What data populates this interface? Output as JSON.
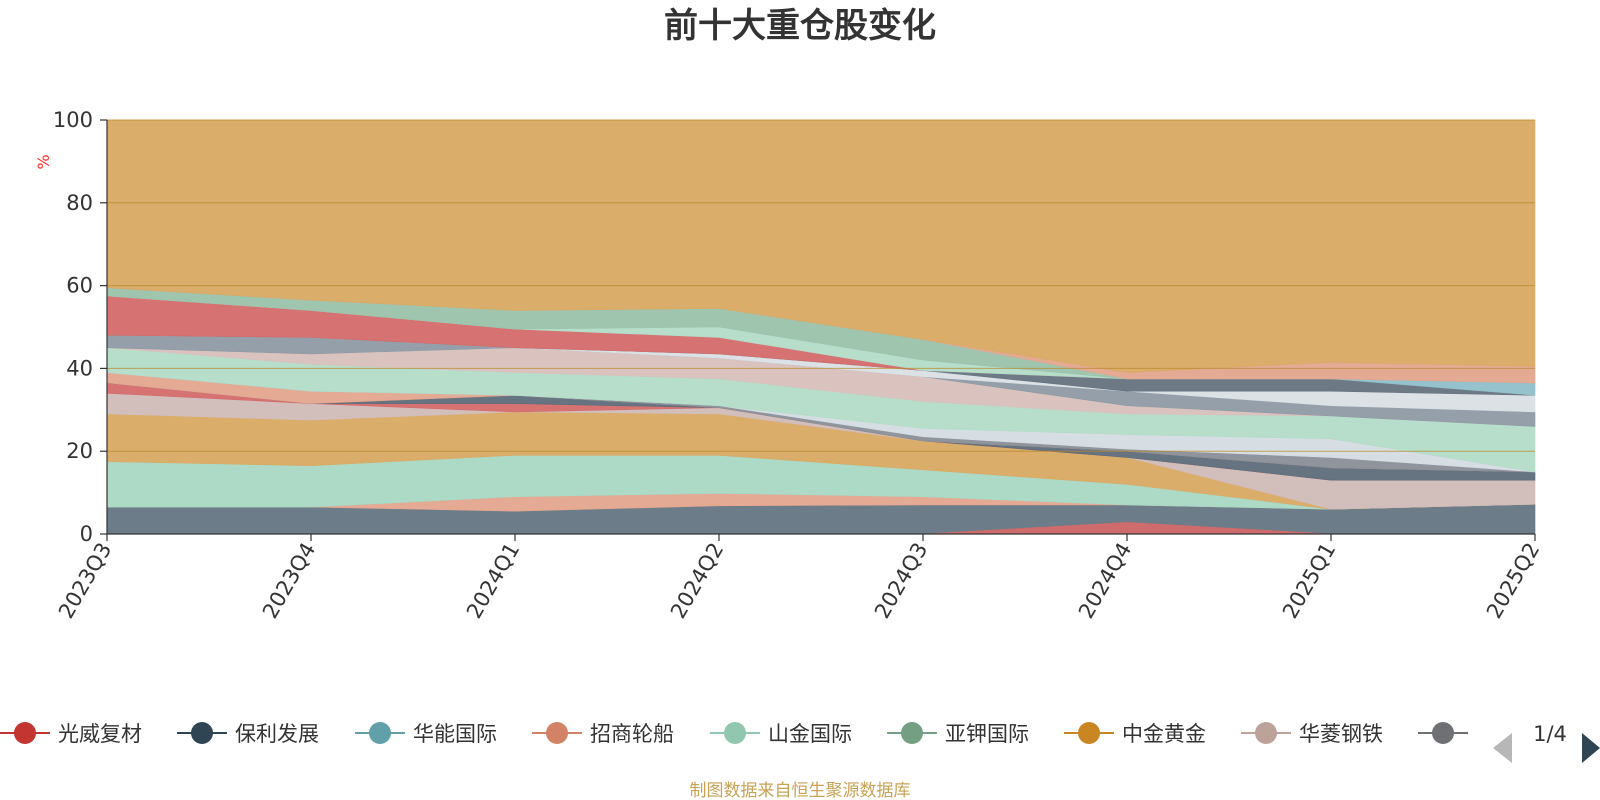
{
  "chart_data": {
    "type": "area",
    "title": "前十大重仓股变化",
    "ylabel": "%",
    "ylim": [
      0,
      100
    ],
    "yticks": [
      0,
      20,
      40,
      60,
      80,
      100
    ],
    "grid": true,
    "legend_position": "bottom",
    "legend_page": "1/4",
    "source_note": "制图数据来自恒生聚源数据库",
    "categories": [
      "2023Q3",
      "2023Q4",
      "2024Q1",
      "2024Q2",
      "2024Q3",
      "2024Q4",
      "2025Q1",
      "2025Q2"
    ],
    "bands": [
      {
        "color": "#647583",
        "opacity": 0.95,
        "lower": [
          0,
          0,
          0,
          0,
          0,
          0,
          0,
          0
        ],
        "upper": [
          6.5,
          6.5,
          5.5,
          6.8,
          7.0,
          7.0,
          6.0,
          7.2
        ]
      },
      {
        "color": "#d46a6a",
        "opacity": 0.95,
        "lower": [
          0,
          0,
          0,
          0,
          0,
          0,
          0,
          0
        ],
        "upper": [
          0,
          0,
          0,
          0,
          0,
          2.8,
          0,
          0
        ]
      },
      {
        "color": "#e4a58e",
        "opacity": 0.95,
        "lower": [
          6.5,
          6.5,
          5.5,
          6.8,
          7.0,
          7.0,
          6.0,
          7.2
        ],
        "upper": [
          6.5,
          6.5,
          9.0,
          9.8,
          9.0,
          7.0,
          6.0,
          7.2
        ]
      },
      {
        "color": "#a8d8c4",
        "opacity": 0.95,
        "lower": [
          6.5,
          6.5,
          9.0,
          9.8,
          9.0,
          7.0,
          6.0,
          7.2
        ],
        "upper": [
          17.5,
          16.5,
          19.0,
          19.0,
          15.5,
          12.0,
          6.0,
          7.2
        ]
      },
      {
        "color": "#d9a962",
        "opacity": 0.95,
        "lower": [
          17.5,
          16.5,
          19.0,
          19.0,
          15.5,
          12.0,
          6.0,
          7.2
        ],
        "upper": [
          29.0,
          27.5,
          29.5,
          29.0,
          22.5,
          18.5,
          6.0,
          7.2
        ]
      },
      {
        "color": "#d0bcb8",
        "opacity": 0.95,
        "lower": [
          29.0,
          27.5,
          29.5,
          29.0,
          22.5,
          18.5,
          6.0,
          7.2
        ],
        "upper": [
          34.0,
          31.5,
          29.5,
          30.5,
          22.5,
          18.5,
          13.0,
          13.0
        ]
      },
      {
        "color": "#d46a6a",
        "opacity": 0.95,
        "lower": [
          34.0,
          31.5,
          29.5,
          30.5,
          22.5,
          18.5,
          13.0,
          13.0
        ],
        "upper": [
          36.5,
          31.5,
          31.5,
          30.5,
          22.5,
          18.5,
          13.0,
          13.0
        ]
      },
      {
        "color": "#5e6c7a",
        "opacity": 0.95,
        "lower": [
          36.5,
          31.5,
          31.5,
          30.5,
          22.5,
          18.5,
          13.0,
          13.0
        ],
        "upper": [
          36.5,
          31.5,
          33.5,
          30.5,
          22.5,
          20.0,
          16.0,
          15.0
        ]
      },
      {
        "color": "#e4a58e",
        "opacity": 0.95,
        "lower": [
          36.5,
          31.5,
          33.5,
          30.5,
          22.5,
          20.0,
          16.0,
          15.0
        ],
        "upper": [
          39.0,
          34.5,
          33.5,
          30.5,
          22.5,
          20.0,
          16.0,
          15.0
        ]
      },
      {
        "color": "#8a8f98",
        "opacity": 0.95,
        "lower": [
          39.0,
          34.5,
          33.5,
          30.5,
          22.5,
          20.0,
          16.0,
          15.0
        ],
        "upper": [
          39.0,
          34.5,
          33.5,
          31.0,
          23.5,
          20.5,
          18.5,
          15.0
        ]
      },
      {
        "color": "#d5dce2",
        "opacity": 0.95,
        "lower": [
          39.0,
          34.5,
          33.5,
          31.0,
          23.5,
          20.5,
          18.5,
          15.0
        ],
        "upper": [
          39.0,
          34.5,
          33.5,
          31.0,
          25.5,
          24.0,
          23.0,
          15.0
        ]
      },
      {
        "color": "#b2dcc8",
        "opacity": 0.95,
        "lower": [
          39.0,
          34.5,
          33.5,
          31.0,
          25.5,
          24.0,
          23.0,
          15.0
        ],
        "upper": [
          45.0,
          41.0,
          39.0,
          37.5,
          32.0,
          29.0,
          28.5,
          26.0
        ]
      },
      {
        "color": "#d8c0bc",
        "opacity": 0.95,
        "lower": [
          45.0,
          41.0,
          39.0,
          37.5,
          32.0,
          29.0,
          28.5,
          26.0
        ],
        "upper": [
          45.0,
          43.5,
          45.0,
          42.5,
          38.0,
          31.0,
          28.5,
          26.0
        ]
      },
      {
        "color": "#8e9aa5",
        "opacity": 0.95,
        "lower": [
          45.0,
          43.5,
          45.0,
          42.5,
          38.0,
          31.0,
          28.5,
          26.0
        ],
        "upper": [
          48.0,
          47.5,
          45.0,
          42.5,
          38.0,
          34.5,
          31.0,
          29.5
        ]
      },
      {
        "color": "#d9dfe4",
        "opacity": 0.95,
        "lower": [
          48.0,
          47.5,
          45.0,
          42.5,
          38.0,
          34.5,
          31.0,
          29.5
        ],
        "upper": [
          48.0,
          47.5,
          45.0,
          43.5,
          39.5,
          34.5,
          34.5,
          33.5
        ]
      },
      {
        "color": "#66727f",
        "opacity": 0.95,
        "lower": [
          48.0,
          47.5,
          45.0,
          43.5,
          39.5,
          34.5,
          34.5,
          33.5
        ],
        "upper": [
          48.0,
          47.5,
          45.0,
          43.5,
          39.5,
          37.5,
          37.5,
          33.5
        ]
      },
      {
        "color": "#8fbfc9",
        "opacity": 0.95,
        "lower": [
          48.0,
          47.5,
          45.0,
          43.5,
          39.5,
          37.5,
          37.5,
          33.5
        ],
        "upper": [
          48.0,
          47.5,
          45.0,
          43.5,
          39.5,
          37.5,
          37.5,
          36.5
        ]
      },
      {
        "color": "#d46a6a",
        "opacity": 0.95,
        "lower": [
          48.0,
          47.5,
          45.0,
          43.5,
          39.5,
          37.5,
          37.5,
          36.5
        ],
        "upper": [
          57.5,
          54.0,
          49.5,
          47.5,
          39.5,
          37.5,
          37.5,
          36.5
        ]
      },
      {
        "color": "#b2dcc8",
        "opacity": 0.95,
        "lower": [
          57.5,
          54.0,
          49.5,
          47.5,
          39.5,
          37.5,
          37.5,
          36.5
        ],
        "upper": [
          57.5,
          54.0,
          49.5,
          50.0,
          42.0,
          37.5,
          37.5,
          36.5
        ]
      },
      {
        "color": "#9bc2ab",
        "opacity": 0.95,
        "lower": [
          57.5,
          54.0,
          49.5,
          50.0,
          42.0,
          37.5,
          37.5,
          36.5
        ],
        "upper": [
          59.5,
          56.5,
          54.0,
          54.5,
          47.0,
          37.5,
          37.5,
          36.5
        ]
      },
      {
        "color": "#e4a58e",
        "opacity": 0.95,
        "lower": [
          59.5,
          56.5,
          54.0,
          54.5,
          47.0,
          37.5,
          37.5,
          36.5
        ],
        "upper": [
          59.5,
          56.5,
          54.0,
          54.5,
          47.0,
          39.0,
          41.5,
          40.5
        ]
      },
      {
        "color": "#d9a962",
        "opacity": 0.95,
        "lower": [
          59.5,
          56.5,
          54.0,
          54.5,
          47.0,
          39.0,
          41.5,
          40.5
        ],
        "upper": [
          100,
          100,
          100,
          100,
          100,
          100,
          100,
          100
        ]
      }
    ],
    "series": [
      {
        "name": "光威复材",
        "color": "#c23531"
      },
      {
        "name": "保利发展",
        "color": "#2f4554"
      },
      {
        "name": "华能国际",
        "color": "#61a0a8"
      },
      {
        "name": "招商轮船",
        "color": "#d48265"
      },
      {
        "name": "山金国际",
        "color": "#91c7ae"
      },
      {
        "name": "亚钾国际",
        "color": "#749f83"
      },
      {
        "name": "中金黄金",
        "color": "#ca8622"
      },
      {
        "name": "华菱钢铁",
        "color": "#bda29a"
      },
      {
        "name": "",
        "color": "#6e7074"
      }
    ]
  }
}
